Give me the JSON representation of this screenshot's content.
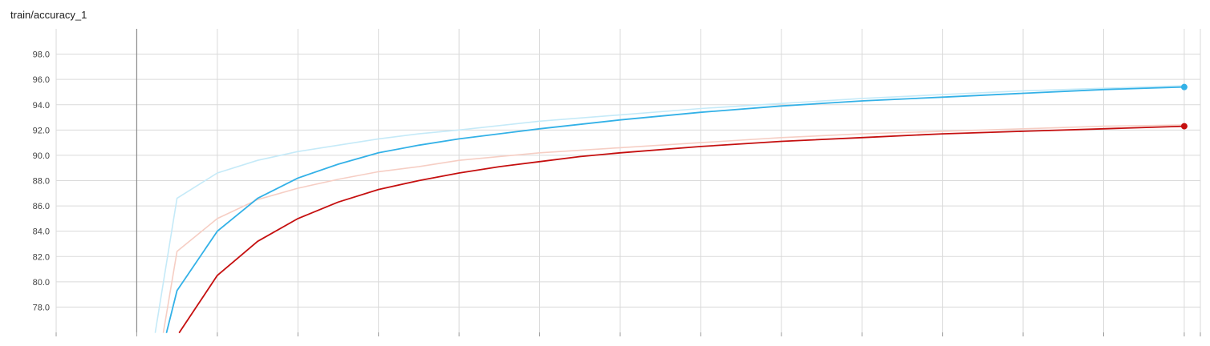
{
  "chart_data": {
    "type": "line",
    "title": "train/accuracy_1",
    "xlabel": "",
    "ylabel": "",
    "xlim": [
      -1,
      13.2
    ],
    "ylim": [
      76.0,
      100.0
    ],
    "y_ticks": [
      78.0,
      80.0,
      82.0,
      84.0,
      86.0,
      88.0,
      90.0,
      92.0,
      94.0,
      96.0,
      98.0
    ],
    "x_gridlines": [
      0,
      1,
      2,
      3,
      4,
      5,
      6,
      7,
      8,
      9,
      10,
      11,
      12,
      13
    ],
    "grid": true,
    "legend": "none",
    "series": [
      {
        "color": "#33b1e7",
        "smoothing": "smoothed",
        "x": [
          0.37,
          0.5,
          1,
          1.5,
          2,
          2.5,
          3,
          3.5,
          4,
          5,
          6,
          7,
          8,
          9,
          10,
          11,
          12,
          13
        ],
        "y": [
          76.0,
          79.3,
          84.0,
          86.6,
          88.2,
          89.3,
          90.2,
          90.8,
          91.3,
          92.1,
          92.8,
          93.4,
          93.9,
          94.3,
          94.6,
          94.9,
          95.2,
          95.4
        ]
      },
      {
        "color": "#c5eaf8",
        "smoothing": "raw",
        "x": [
          0.23,
          0.5,
          1,
          1.5,
          2,
          2.5,
          3,
          3.5,
          4,
          5,
          6,
          7,
          8,
          9,
          10,
          11,
          12,
          13
        ],
        "y": [
          76.0,
          86.6,
          88.6,
          89.6,
          90.3,
          90.8,
          91.3,
          91.7,
          92.0,
          92.7,
          93.2,
          93.7,
          94.1,
          94.5,
          94.8,
          95.1,
          95.3,
          95.5
        ]
      },
      {
        "color": "#c50f0f",
        "smoothing": "smoothed",
        "x": [
          0.53,
          1,
          1.5,
          2,
          2.5,
          3,
          3.5,
          4,
          4.5,
          5,
          5.5,
          6,
          7,
          8,
          9,
          10,
          11,
          12,
          13
        ],
        "y": [
          76.0,
          80.5,
          83.2,
          85.0,
          86.3,
          87.3,
          88.0,
          88.6,
          89.1,
          89.5,
          89.9,
          90.2,
          90.7,
          91.1,
          91.4,
          91.7,
          91.9,
          92.1,
          92.3
        ]
      },
      {
        "color": "#f6cec4",
        "smoothing": "raw",
        "x": [
          0.33,
          0.5,
          1,
          1.5,
          2,
          2.5,
          3,
          3.5,
          4,
          5,
          6,
          7,
          8,
          9,
          10,
          11,
          12,
          13
        ],
        "y": [
          76.0,
          82.4,
          85.0,
          86.5,
          87.4,
          88.1,
          88.7,
          89.1,
          89.6,
          90.2,
          90.6,
          91.0,
          91.4,
          91.7,
          91.9,
          92.1,
          92.3,
          92.4
        ]
      }
    ]
  }
}
